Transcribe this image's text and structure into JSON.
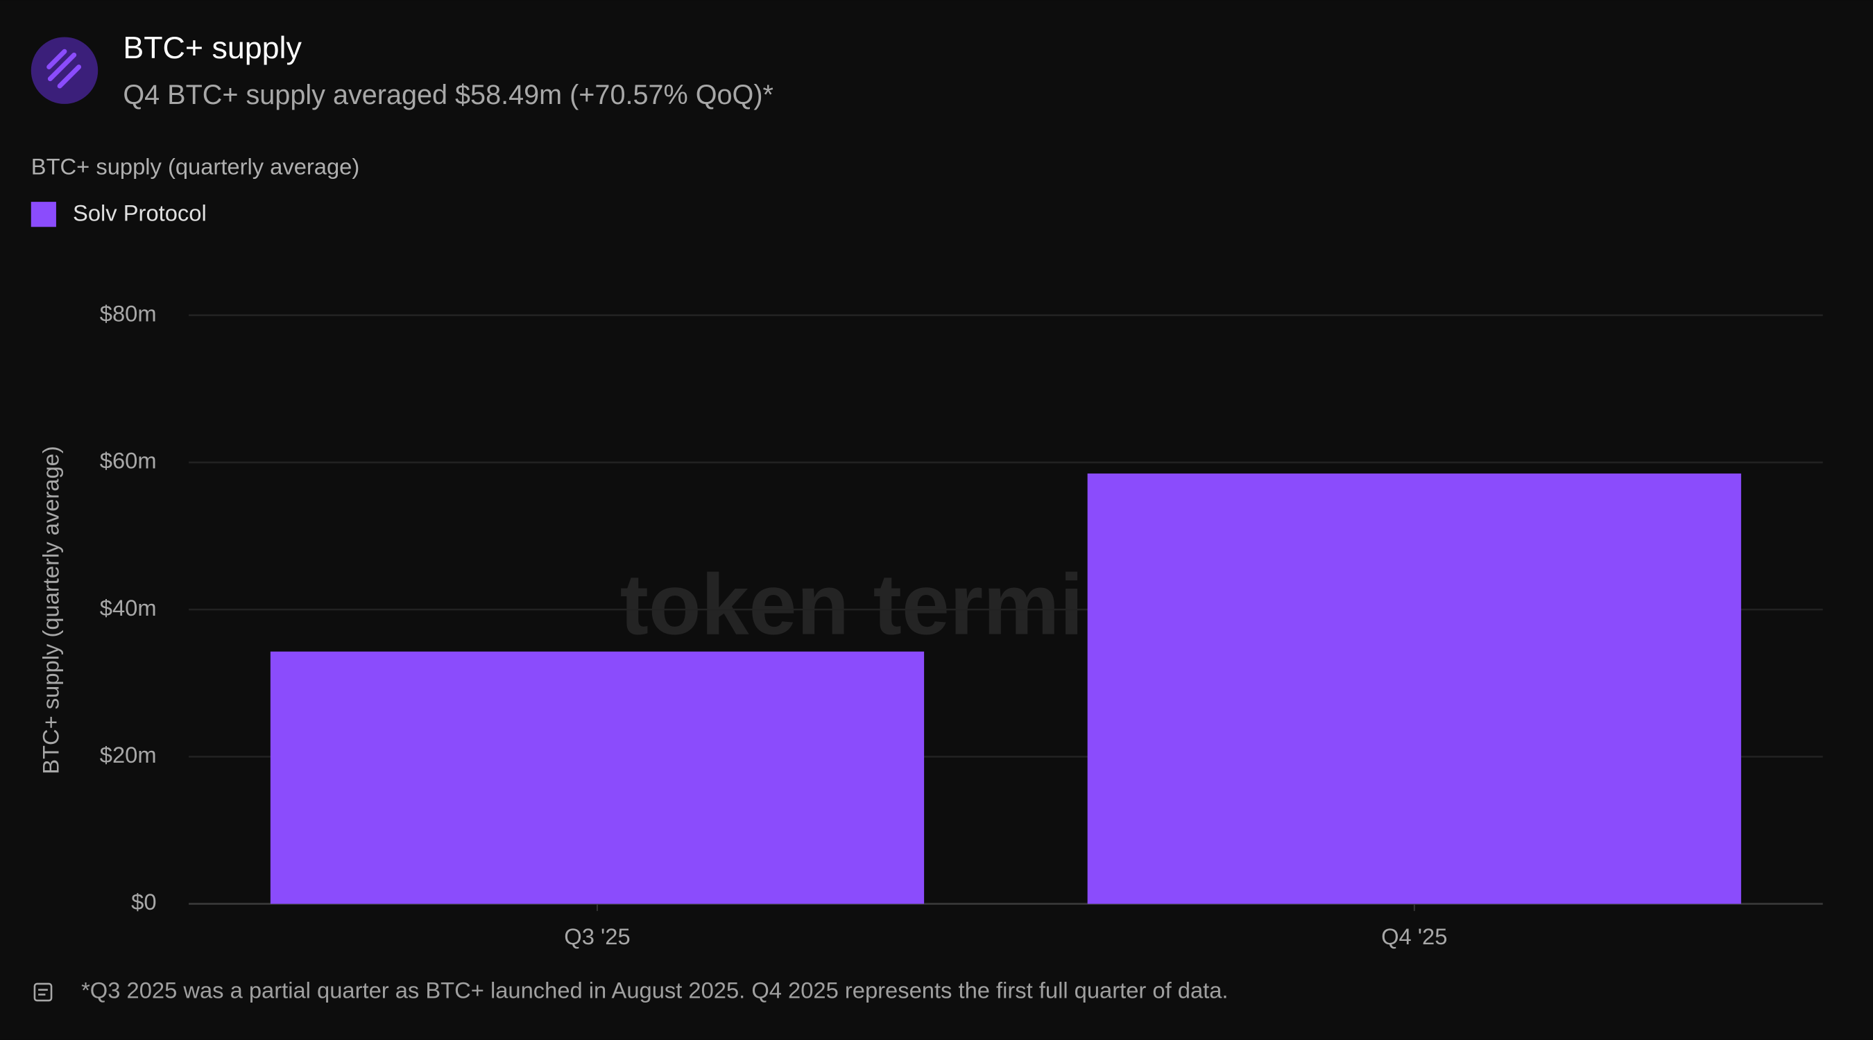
{
  "chart_data": {
    "type": "bar",
    "title": "BTC+ supply",
    "subtitle": "Q4 BTC+ supply averaged $58.49m (+70.57% QoQ)*",
    "legend_title": "BTC+ supply (quarterly average)",
    "y_label": "BTC+ supply (quarterly average)",
    "watermark": "token terminal_",
    "footnote": "*Q3 2025 was a partial quarter as BTC+ launched in August 2025. Q4 2025 represents the first full quarter of data.",
    "categories": [
      "Q3 '25",
      "Q4 '25"
    ],
    "series": [
      {
        "name": "Solv Protocol",
        "color": "#8b4cfc",
        "values": [
          34.29,
          58.49
        ]
      }
    ],
    "ylim": [
      0,
      80
    ],
    "yticks": [
      {
        "value": 0,
        "label": "$0"
      },
      {
        "value": 20,
        "label": "$20m"
      },
      {
        "value": 40,
        "label": "$40m"
      },
      {
        "value": 60,
        "label": "$60m"
      },
      {
        "value": 80,
        "label": "$80m"
      }
    ],
    "grid": true
  }
}
